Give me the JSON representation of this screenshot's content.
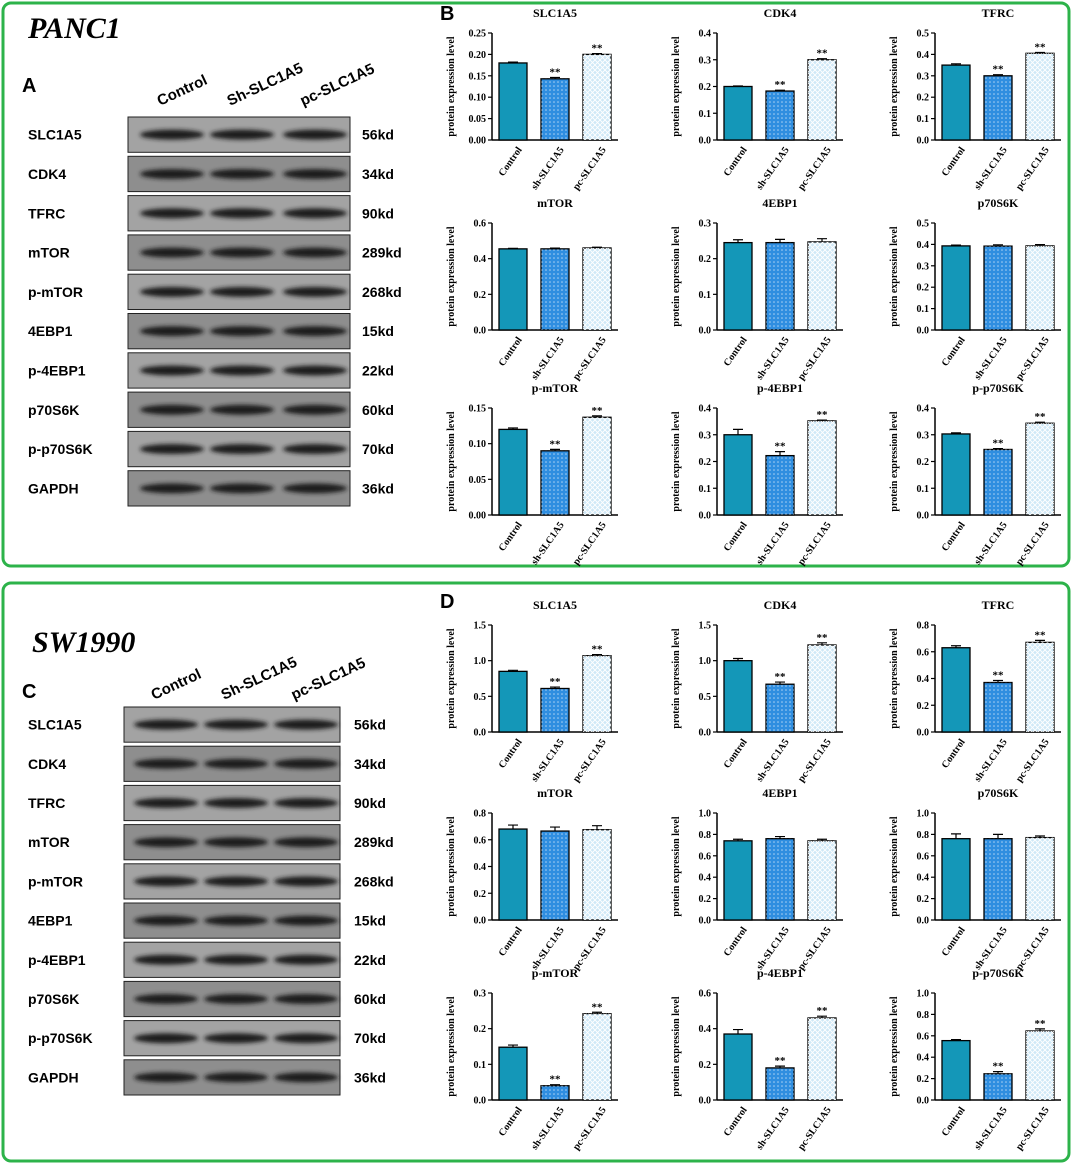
{
  "figure": [
    {
      "cell_line": "PANC1",
      "blot_panel": "A",
      "chart_panel": "B",
      "lanes": [
        "Control",
        "Sh-SLC1A5",
        "pc-SLC1A5"
      ],
      "bands": [
        {
          "name": "SLC1A5",
          "size": "56kd"
        },
        {
          "name": "CDK4",
          "size": "34kd"
        },
        {
          "name": "TFRC",
          "size": "90kd"
        },
        {
          "name": "mTOR",
          "size": "289kd"
        },
        {
          "name": "p-mTOR",
          "size": "268kd"
        },
        {
          "name": "4EBP1",
          "size": "15kd"
        },
        {
          "name": "p-4EBP1",
          "size": "22kd"
        },
        {
          "name": "p70S6K",
          "size": "60kd"
        },
        {
          "name": "p-p70S6K",
          "size": "70kd"
        },
        {
          "name": "GAPDH",
          "size": "36kd"
        }
      ]
    },
    {
      "cell_line": "SW1990",
      "blot_panel": "C",
      "chart_panel": "D",
      "lanes": [
        "Control",
        "Sh-SLC1A5",
        "pc-SLC1A5"
      ],
      "bands": [
        {
          "name": "SLC1A5",
          "size": "56kd"
        },
        {
          "name": "CDK4",
          "size": "34kd"
        },
        {
          "name": "TFRC",
          "size": "90kd"
        },
        {
          "name": "mTOR",
          "size": "289kd"
        },
        {
          "name": "p-mTOR",
          "size": "268kd"
        },
        {
          "name": "4EBP1",
          "size": "15kd"
        },
        {
          "name": "p-4EBP1",
          "size": "22kd"
        },
        {
          "name": "p70S6K",
          "size": "60kd"
        },
        {
          "name": "p-p70S6K",
          "size": "70kd"
        },
        {
          "name": "GAPDH",
          "size": "36kd"
        }
      ]
    }
  ],
  "chart_data": [
    {
      "type": "bar",
      "title": "SLC1A5",
      "ylabel": "protein expression level",
      "categories": [
        "Control",
        "sh-SLC1A5",
        "pc-SLC1A5"
      ],
      "values": [
        0.18,
        0.143,
        0.2
      ],
      "errors": [
        0.002,
        0.003,
        0.002
      ],
      "annotations": [
        null,
        "**",
        "**"
      ],
      "colors": [
        "#1497b8",
        "#2f8ee0",
        "#cfe8f7"
      ],
      "ylim": [
        0,
        0.25
      ],
      "yticks": [
        {
          "value": 0,
          "label": "0.00"
        },
        0.05,
        {
          "value": 0.1,
          "label": "0.10"
        },
        0.15,
        {
          "value": 0.2,
          "label": "0.20"
        },
        0.25
      ]
    },
    {
      "type": "bar",
      "title": "CDK4",
      "ylabel": "protein expression level",
      "categories": [
        "Control",
        "sh-SLC1A5",
        "pc-SLC1A5"
      ],
      "values": [
        0.2,
        0.183,
        0.3
      ],
      "errors": [
        0.002,
        0.003,
        0.004
      ],
      "annotations": [
        null,
        "**",
        "**"
      ],
      "colors": [
        "#1497b8",
        "#2f8ee0",
        "#cfe8f7"
      ],
      "ylim": [
        0,
        0.4
      ],
      "yticks": [
        {
          "value": 0,
          "label": "0.0"
        },
        0.1,
        0.2,
        0.3,
        0.4
      ]
    },
    {
      "type": "bar",
      "title": "TFRC",
      "ylabel": "protein expression level",
      "categories": [
        "Control",
        "sh-SLC1A5",
        "pc-SLC1A5"
      ],
      "values": [
        0.35,
        0.3,
        0.405
      ],
      "errors": [
        0.006,
        0.005,
        0.004
      ],
      "annotations": [
        null,
        "**",
        "**"
      ],
      "colors": [
        "#1497b8",
        "#2f8ee0",
        "#cfe8f7"
      ],
      "ylim": [
        0,
        0.5
      ],
      "yticks": [
        {
          "value": 0,
          "label": "0.0"
        },
        0.1,
        0.2,
        0.3,
        0.4,
        0.5
      ]
    },
    {
      "type": "bar",
      "title": "mTOR",
      "ylabel": "protein expression level",
      "categories": [
        "Control",
        "sh-SLC1A5",
        "pc-SLC1A5"
      ],
      "values": [
        0.455,
        0.455,
        0.46
      ],
      "errors": [
        0.003,
        0.004,
        0.004
      ],
      "colors": [
        "#1497b8",
        "#2f8ee0",
        "#cfe8f7"
      ],
      "ylim": [
        0,
        0.6
      ],
      "yticks": [
        {
          "value": 0,
          "label": "0.0"
        },
        0.2,
        0.4,
        0.6
      ]
    },
    {
      "type": "bar",
      "title": "4EBP1",
      "ylabel": "protein expression level",
      "categories": [
        "Control",
        "sh-SLC1A5",
        "pc-SLC1A5"
      ],
      "values": [
        0.245,
        0.245,
        0.247
      ],
      "errors": [
        0.008,
        0.009,
        0.009
      ],
      "colors": [
        "#1497b8",
        "#2f8ee0",
        "#cfe8f7"
      ],
      "ylim": [
        0,
        0.3
      ],
      "yticks": [
        {
          "value": 0,
          "label": "0.0"
        },
        0.1,
        0.2,
        0.3
      ]
    },
    {
      "type": "bar",
      "title": "p70S6K",
      "ylabel": "protein expression level",
      "categories": [
        "Control",
        "sh-SLC1A5",
        "pc-SLC1A5"
      ],
      "values": [
        0.393,
        0.392,
        0.393
      ],
      "errors": [
        0.004,
        0.006,
        0.006
      ],
      "colors": [
        "#1497b8",
        "#2f8ee0",
        "#cfe8f7"
      ],
      "ylim": [
        0,
        0.5
      ],
      "yticks": [
        {
          "value": 0,
          "label": "0.0"
        },
        0.1,
        0.2,
        0.3,
        0.4,
        0.5
      ]
    },
    {
      "type": "bar",
      "title": "p-mTOR",
      "ylabel": "protein expression level",
      "categories": [
        "Control",
        "sh-SLC1A5",
        "pc-SLC1A5"
      ],
      "values": [
        0.12,
        0.09,
        0.137
      ],
      "errors": [
        0.002,
        0.002,
        0.002
      ],
      "annotations": [
        null,
        "**",
        "**"
      ],
      "colors": [
        "#1497b8",
        "#2f8ee0",
        "#cfe8f7"
      ],
      "ylim": [
        0,
        0.15
      ],
      "yticks": [
        {
          "value": 0,
          "label": "0.00"
        },
        0.05,
        {
          "value": 0.1,
          "label": "0.10"
        },
        0.15
      ]
    },
    {
      "type": "bar",
      "title": "p-4EBP1",
      "ylabel": "protein expression level",
      "categories": [
        "Control",
        "sh-SLC1A5",
        "pc-SLC1A5"
      ],
      "values": [
        0.3,
        0.222,
        0.352
      ],
      "errors": [
        0.02,
        0.015,
        0.003
      ],
      "annotations": [
        null,
        "**",
        "**"
      ],
      "colors": [
        "#1497b8",
        "#2f8ee0",
        "#cfe8f7"
      ],
      "ylim": [
        0,
        0.4
      ],
      "yticks": [
        {
          "value": 0,
          "label": "0.0"
        },
        0.1,
        0.2,
        0.3,
        0.4
      ]
    },
    {
      "type": "bar",
      "title": "p-p70S6K",
      "ylabel": "protein expression level",
      "categories": [
        "Control",
        "sh-SLC1A5",
        "pc-SLC1A5"
      ],
      "values": [
        0.303,
        0.245,
        0.343
      ],
      "errors": [
        0.004,
        0.003,
        0.004
      ],
      "annotations": [
        null,
        "**",
        "**"
      ],
      "colors": [
        "#1497b8",
        "#2f8ee0",
        "#cfe8f7"
      ],
      "ylim": [
        0,
        0.4
      ],
      "yticks": [
        {
          "value": 0,
          "label": "0.0"
        },
        0.1,
        0.2,
        0.3,
        0.4
      ]
    },
    {
      "type": "bar",
      "title": "SLC1A5",
      "ylabel": "protein expression level",
      "categories": [
        "Control",
        "sh-SLC1A5",
        "pc-SLC1A5"
      ],
      "values": [
        0.85,
        0.61,
        1.07
      ],
      "errors": [
        0.015,
        0.02,
        0.015
      ],
      "annotations": [
        null,
        "**",
        "**"
      ],
      "colors": [
        "#1497b8",
        "#2f8ee0",
        "#cfe8f7"
      ],
      "ylim": [
        0,
        1.5
      ],
      "yticks": [
        {
          "value": 0,
          "label": "0.0"
        },
        0.5,
        {
          "value": 1,
          "label": "1.0"
        },
        1.5
      ]
    },
    {
      "type": "bar",
      "title": "CDK4",
      "ylabel": "protein expression level",
      "categories": [
        "Control",
        "sh-SLC1A5",
        "pc-SLC1A5"
      ],
      "values": [
        1.0,
        0.67,
        1.22
      ],
      "errors": [
        0.03,
        0.03,
        0.03
      ],
      "annotations": [
        null,
        "**",
        "**"
      ],
      "colors": [
        "#1497b8",
        "#2f8ee0",
        "#cfe8f7"
      ],
      "ylim": [
        0,
        1.5
      ],
      "yticks": [
        {
          "value": 0,
          "label": "0.0"
        },
        0.5,
        {
          "value": 1,
          "label": "1.0"
        },
        1.5
      ]
    },
    {
      "type": "bar",
      "title": "TFRC",
      "ylabel": "protein expression level",
      "categories": [
        "Control",
        "sh-SLC1A5",
        "pc-SLC1A5"
      ],
      "values": [
        0.63,
        0.37,
        0.67
      ],
      "errors": [
        0.015,
        0.015,
        0.015
      ],
      "annotations": [
        null,
        "**",
        "**"
      ],
      "colors": [
        "#1497b8",
        "#2f8ee0",
        "#cfe8f7"
      ],
      "ylim": [
        0,
        0.8
      ],
      "yticks": [
        {
          "value": 0,
          "label": "0.0"
        },
        0.2,
        0.4,
        0.6,
        0.8
      ]
    },
    {
      "type": "bar",
      "title": "mTOR",
      "ylabel": "protein expression level",
      "categories": [
        "Control",
        "sh-SLC1A5",
        "pc-SLC1A5"
      ],
      "values": [
        0.68,
        0.665,
        0.675
      ],
      "errors": [
        0.03,
        0.03,
        0.03
      ],
      "colors": [
        "#1497b8",
        "#2f8ee0",
        "#cfe8f7"
      ],
      "ylim": [
        0,
        0.8
      ],
      "yticks": [
        {
          "value": 0,
          "label": "0.0"
        },
        0.2,
        0.4,
        0.6,
        0.8
      ]
    },
    {
      "type": "bar",
      "title": "4EBP1",
      "ylabel": "protein expression level",
      "categories": [
        "Control",
        "sh-SLC1A5",
        "pc-SLC1A5"
      ],
      "values": [
        0.74,
        0.76,
        0.74
      ],
      "errors": [
        0.015,
        0.02,
        0.015
      ],
      "colors": [
        "#1497b8",
        "#2f8ee0",
        "#cfe8f7"
      ],
      "ylim": [
        0,
        1.0
      ],
      "yticks": [
        {
          "value": 0,
          "label": "0.0"
        },
        0.2,
        0.4,
        0.6,
        0.8,
        {
          "value": 1,
          "label": "1.0"
        }
      ]
    },
    {
      "type": "bar",
      "title": "p70S6K",
      "ylabel": "protein expression level",
      "categories": [
        "Control",
        "sh-SLC1A5",
        "pc-SLC1A5"
      ],
      "values": [
        0.76,
        0.76,
        0.77
      ],
      "errors": [
        0.045,
        0.04,
        0.015
      ],
      "colors": [
        "#1497b8",
        "#2f8ee0",
        "#cfe8f7"
      ],
      "ylim": [
        0,
        1.0
      ],
      "yticks": [
        {
          "value": 0,
          "label": "0.0"
        },
        0.2,
        0.4,
        0.6,
        0.8,
        {
          "value": 1,
          "label": "1.0"
        }
      ]
    },
    {
      "type": "bar",
      "title": "p-mTOR",
      "ylabel": "protein expression level",
      "categories": [
        "Control",
        "sh-SLC1A5",
        "pc-SLC1A5"
      ],
      "values": [
        0.148,
        0.04,
        0.242
      ],
      "errors": [
        0.006,
        0.003,
        0.004
      ],
      "annotations": [
        null,
        "**",
        "**"
      ],
      "colors": [
        "#1497b8",
        "#2f8ee0",
        "#cfe8f7"
      ],
      "ylim": [
        0,
        0.3
      ],
      "yticks": [
        {
          "value": 0,
          "label": "0.0"
        },
        0.1,
        0.2,
        0.3
      ]
    },
    {
      "type": "bar",
      "title": "p-4EBP1",
      "ylabel": "protein expression level",
      "categories": [
        "Control",
        "sh-SLC1A5",
        "pc-SLC1A5"
      ],
      "values": [
        0.37,
        0.18,
        0.46
      ],
      "errors": [
        0.025,
        0.01,
        0.01
      ],
      "annotations": [
        null,
        "**",
        "**"
      ],
      "colors": [
        "#1497b8",
        "#2f8ee0",
        "#cfe8f7"
      ],
      "ylim": [
        0,
        0.6
      ],
      "yticks": [
        {
          "value": 0,
          "label": "0.0"
        },
        0.2,
        0.4,
        0.6
      ]
    },
    {
      "type": "bar",
      "title": "p-p70S6K",
      "ylabel": "protein expression level",
      "categories": [
        "Control",
        "sh-SLC1A5",
        "pc-SLC1A5"
      ],
      "values": [
        0.555,
        0.245,
        0.645
      ],
      "errors": [
        0.01,
        0.02,
        0.02
      ],
      "annotations": [
        null,
        "**",
        "**"
      ],
      "colors": [
        "#1497b8",
        "#2f8ee0",
        "#cfe8f7"
      ],
      "ylim": [
        0,
        1.0
      ],
      "yticks": [
        {
          "value": 0,
          "label": "0.0"
        },
        0.2,
        0.4,
        0.6,
        0.8,
        {
          "value": 1,
          "label": "1.0"
        }
      ]
    }
  ]
}
